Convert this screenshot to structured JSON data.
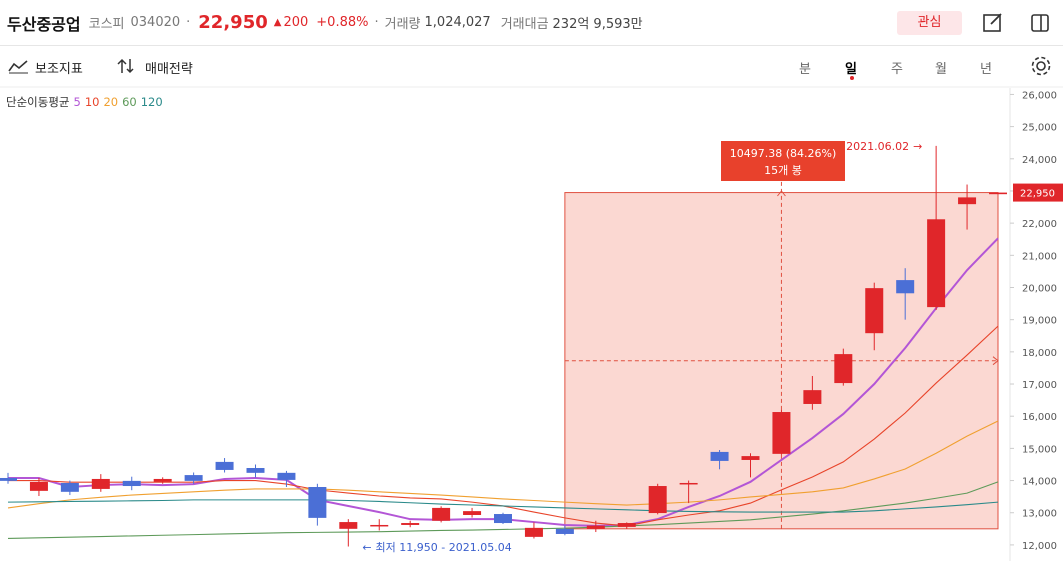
{
  "header": {
    "name": "두산중공업",
    "market": "코스피",
    "code": "034020",
    "price": "22,950",
    "change": "200",
    "change_pct": "+0.88%",
    "volume_label": "거래량",
    "volume": "1,024,027",
    "amount_label": "거래대금",
    "amount": "232억 9,593만",
    "favorite": "관심"
  },
  "toolbar": {
    "indicators": "보조지표",
    "strategy": "매매전략",
    "periods": [
      "분",
      "일",
      "주",
      "월",
      "년"
    ],
    "active_period": 1
  },
  "chart": {
    "type": "candlestick",
    "ylim": [
      11500,
      26200
    ],
    "yticks": [
      {
        "value": 12000,
        "label": "12,000"
      },
      {
        "value": 13000,
        "label": "13,000"
      },
      {
        "value": 14000,
        "label": "14,000"
      },
      {
        "value": 15000,
        "label": "15,000"
      },
      {
        "value": 16000,
        "label": "16,000"
      },
      {
        "value": 17000,
        "label": "17,000"
      },
      {
        "value": 18000,
        "label": "18,000"
      },
      {
        "value": 19000,
        "label": "19,000"
      },
      {
        "value": 20000,
        "label": "20,000"
      },
      {
        "value": 21000,
        "label": "21,000"
      },
      {
        "value": 22000,
        "label": "22,000"
      },
      {
        "value": 23000,
        "label": "23,000"
      },
      {
        "value": 24000,
        "label": "24,000"
      },
      {
        "value": 25000,
        "label": "25,000"
      },
      {
        "value": 26000,
        "label": "26,000"
      }
    ],
    "up_color": "#e0262a",
    "down_color": "#4b6fd6",
    "open": [
      14080,
      13680,
      13925,
      13740,
      13990,
      13960,
      14170,
      14580,
      14390,
      14240,
      13800,
      12500,
      12600,
      12620,
      12750,
      12930,
      12960,
      12250,
      12500,
      12500,
      12560,
      12990,
      13900,
      14890,
      14640,
      14830,
      16380,
      17030,
      18580,
      20230,
      19390,
      22590,
      22900
    ],
    "high": [
      14240,
      14080,
      14000,
      14200,
      14120,
      14100,
      14250,
      14700,
      14500,
      14300,
      13900,
      12800,
      12800,
      12750,
      13200,
      13150,
      13000,
      12700,
      12600,
      12750,
      12700,
      13900,
      14000,
      14950,
      14850,
      16200,
      17250,
      18100,
      20150,
      20600,
      24400,
      23200,
      22950
    ],
    "low": [
      13900,
      13520,
      13550,
      13650,
      13700,
      13900,
      13900,
      14250,
      14100,
      13800,
      12600,
      11950,
      12450,
      12550,
      12700,
      12850,
      12650,
      12200,
      12300,
      12400,
      12500,
      12950,
      13300,
      14350,
      14100,
      14800,
      16200,
      16950,
      18050,
      19000,
      19300,
      21800,
      22900
    ],
    "close": [
      13990,
      13960,
      13650,
      14050,
      13830,
      14050,
      13990,
      14330,
      14240,
      14020,
      12840,
      12710,
      12620,
      12680,
      13150,
      13050,
      12680,
      12530,
      12340,
      12600,
      12680,
      13830,
      13925,
      14610,
      14760,
      16130,
      16810,
      17930,
      19980,
      19820,
      22120,
      22800,
      22950
    ],
    "ma": {
      "label": "단순이동평균",
      "series": [
        {
          "name": "5",
          "color": "#b356d6",
          "values": [
            14080,
            14080,
            13800,
            13860,
            13890,
            13860,
            13890,
            14050,
            14080,
            14020,
            13400,
            13210,
            13020,
            12800,
            12780,
            12800,
            12800,
            12710,
            12620,
            12590,
            12620,
            12800,
            13180,
            13520,
            13960,
            14640,
            15320,
            16070,
            17000,
            18120,
            19360,
            20540,
            21530
          ]
        },
        {
          "name": "10",
          "color": "#e8442a",
          "values": [
            14000,
            14000,
            13950,
            13950,
            13950,
            13950,
            13950,
            14000,
            14000,
            13890,
            13710,
            13610,
            13520,
            13460,
            13430,
            13330,
            13210,
            13020,
            12840,
            12680,
            12590,
            12780,
            12930,
            13060,
            13300,
            13710,
            14110,
            14580,
            15290,
            16100,
            17030,
            17900,
            18800
          ]
        },
        {
          "name": "20",
          "color": "#f0a030",
          "values": [
            13150,
            13280,
            13400,
            13480,
            13550,
            13600,
            13650,
            13700,
            13740,
            13740,
            13740,
            13700,
            13650,
            13600,
            13550,
            13490,
            13430,
            13380,
            13330,
            13280,
            13240,
            13280,
            13330,
            13400,
            13490,
            13570,
            13650,
            13770,
            14050,
            14360,
            14850,
            15380,
            15850
          ]
        },
        {
          "name": "60",
          "color": "#5e9a5a",
          "values": [
            12200,
            12220,
            12240,
            12260,
            12280,
            12300,
            12320,
            12340,
            12360,
            12380,
            12390,
            12400,
            12410,
            12430,
            12450,
            12460,
            12480,
            12500,
            12520,
            12550,
            12590,
            12630,
            12680,
            12730,
            12780,
            12870,
            12960,
            13060,
            13180,
            13300,
            13450,
            13610,
            13960
          ]
        },
        {
          "name": "120",
          "color": "#2a8a8a",
          "values": [
            13330,
            13340,
            13350,
            13360,
            13370,
            13380,
            13400,
            13400,
            13400,
            13400,
            13400,
            13380,
            13350,
            13310,
            13270,
            13240,
            13210,
            13180,
            13150,
            13120,
            13090,
            13060,
            13040,
            13030,
            13020,
            13020,
            13020,
            13020,
            13060,
            13120,
            13180,
            13250,
            13330
          ]
        }
      ]
    },
    "last_price_label": "22,950",
    "high_note": "2021.06.02",
    "low_note": "최저 11,950 - 2021.05.04",
    "range_box": {
      "change": "10497.38 (84.26%)",
      "count": "15개 봉"
    }
  }
}
